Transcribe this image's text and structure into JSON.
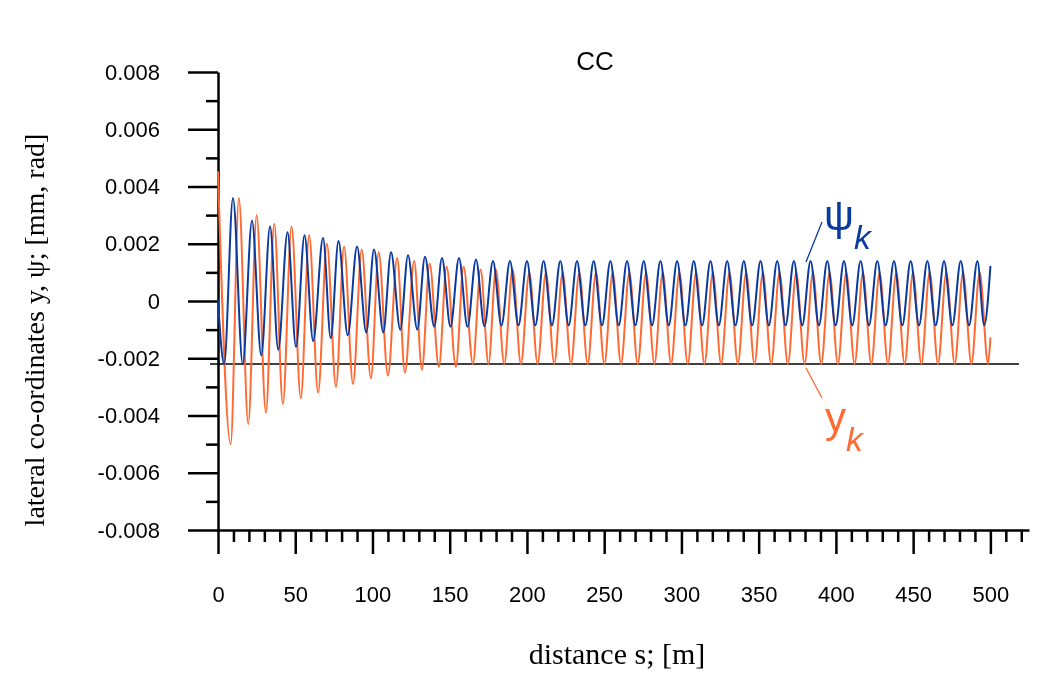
{
  "chart_data": {
    "type": "line",
    "title": "CC",
    "xlabel": "distance s; [m]",
    "ylabel": "lateral co-ordinates y, ψ; [mm, rad]",
    "xlim": [
      0,
      525
    ],
    "xticks": [
      0,
      {
        "value": 10,
        "label": null
      },
      {
        "value": 20,
        "label": null
      },
      {
        "value": 30,
        "label": null
      },
      {
        "value": 40,
        "label": null
      },
      50,
      {
        "value": 60,
        "label": null
      },
      {
        "value": 70,
        "label": null
      },
      {
        "value": 80,
        "label": null
      },
      {
        "value": 90,
        "label": null
      },
      100,
      {
        "value": 110,
        "label": null
      },
      {
        "value": 120,
        "label": null
      },
      {
        "value": 130,
        "label": null
      },
      {
        "value": 140,
        "label": null
      },
      150,
      {
        "value": 160,
        "label": null
      },
      {
        "value": 170,
        "label": null
      },
      {
        "value": 180,
        "label": null
      },
      {
        "value": 190,
        "label": null
      },
      200,
      {
        "value": 210,
        "label": null
      },
      {
        "value": 220,
        "label": null
      },
      {
        "value": 230,
        "label": null
      },
      {
        "value": 240,
        "label": null
      },
      250,
      {
        "value": 260,
        "label": null
      },
      {
        "value": 270,
        "label": null
      },
      {
        "value": 280,
        "label": null
      },
      {
        "value": 290,
        "label": null
      },
      300,
      {
        "value": 310,
        "label": null
      },
      {
        "value": 320,
        "label": null
      },
      {
        "value": 330,
        "label": null
      },
      {
        "value": 340,
        "label": null
      },
      350,
      {
        "value": 360,
        "label": null
      },
      {
        "value": 370,
        "label": null
      },
      {
        "value": 380,
        "label": null
      },
      {
        "value": 390,
        "label": null
      },
      400,
      {
        "value": 410,
        "label": null
      },
      {
        "value": 420,
        "label": null
      },
      {
        "value": 430,
        "label": null
      },
      {
        "value": 440,
        "label": null
      },
      450,
      {
        "value": 460,
        "label": null
      },
      {
        "value": 470,
        "label": null
      },
      {
        "value": 480,
        "label": null
      },
      {
        "value": 490,
        "label": null
      },
      500,
      {
        "value": 510,
        "label": null
      },
      {
        "value": 520,
        "label": null
      }
    ],
    "ylim": [
      -0.008,
      0.008
    ],
    "yticks": [
      -0.008,
      {
        "value": -0.007,
        "label": null
      },
      -0.006,
      {
        "value": -0.005,
        "label": null
      },
      -0.004,
      {
        "value": -0.003,
        "label": null
      },
      -0.002,
      {
        "value": -0.001,
        "label": null
      },
      0,
      {
        "value": 0.001,
        "label": null
      },
      0.002,
      {
        "value": 0.003,
        "label": null
      },
      0.004,
      {
        "value": 0.005,
        "label": null
      },
      0.006,
      {
        "value": 0.007,
        "label": null
      },
      0.008
    ],
    "grid": false,
    "legend": "right",
    "marker": "none",
    "line_style": "solid",
    "ref_lines": [
      {
        "axis": "y",
        "value": -0.0022,
        "color": "#000000"
      }
    ],
    "series": [
      {
        "name": "y$_{k}$",
        "color": "#ff6a33",
        "x": [
          0,
          8.2,
          13.5,
          19.6,
          25,
          31,
          36.4,
          42,
          47.6,
          53.6,
          59,
          64.8,
          70.5,
          76.4,
          81.6,
          87.4,
          93,
          99,
          104,
          110,
          116,
          121,
          127,
          132,
          137,
          143,
          148,
          154,
          159,
          165,
          170,
          175.1,
          179.9,
          185.3,
          190.7,
          196.1,
          201.5,
          206.9,
          212.3,
          217.7,
          223.1,
          228.5,
          233.9,
          239.3,
          244.7,
          250.1,
          255.5,
          260.9,
          266.3,
          271.7,
          277.1,
          282.5,
          287.9,
          293.3,
          298.7,
          304.1,
          309.5,
          314.9,
          320.3,
          325.7,
          331.1,
          336.5,
          341.9,
          347.3,
          352.7,
          358.1,
          363.5,
          368.9,
          374.3,
          379.7,
          385.1,
          390.5,
          395.9,
          401.3,
          406.7,
          412.1,
          417.5,
          422.9,
          428.3,
          433.7,
          439.1,
          444.5,
          449.9,
          455.3,
          460.7,
          466.1,
          471.5,
          476.9,
          482.3,
          487.7,
          493.1,
          498.5,
          500
        ],
        "values": [
          0.0045,
          -0.005,
          0.0036,
          -0.0043,
          0.003,
          -0.0039,
          0.0027,
          -0.0036,
          0.0026,
          -0.0034,
          0.0023,
          -0.0032,
          0.002,
          -0.003,
          0.0019,
          -0.0029,
          0.0018,
          -0.0027,
          0.0017,
          -0.0026,
          0.0015,
          -0.0025,
          0.0014,
          -0.0024,
          0.0013,
          -0.0023,
          0.0012,
          -0.0023,
          0.0012,
          -0.0022,
          0.0011,
          -0.0022,
          0.0011,
          -0.0022,
          0.0011,
          -0.0022,
          0.001,
          -0.0022,
          0.001,
          -0.0022,
          0.001,
          -0.0022,
          0.001,
          -0.0022,
          0.001,
          -0.0022,
          0.001,
          -0.0022,
          0.001,
          -0.0022,
          0.001,
          -0.0022,
          0.001,
          -0.0022,
          0.001,
          -0.0022,
          0.001,
          -0.0022,
          0.001,
          -0.0022,
          0.001,
          -0.0022,
          0.001,
          -0.0022,
          0.001,
          -0.0022,
          0.001,
          -0.0022,
          0.001,
          -0.0022,
          0.001,
          -0.0022,
          0.001,
          -0.0022,
          0.001,
          -0.0022,
          0.001,
          -0.0022,
          0.001,
          -0.0022,
          0.001,
          -0.0022,
          0.001,
          -0.0022,
          0.001,
          -0.0022,
          0.001,
          -0.0022,
          0.001,
          -0.0022,
          0.001,
          -0.0022,
          -0.0013
        ]
      },
      {
        "name": "ψ$_{k}$",
        "color": "#0a3a9e",
        "x": [
          0,
          4,
          9.7,
          16,
          22,
          28,
          33.7,
          39,
          45,
          50.5,
          56,
          61.6,
          68,
          73,
          78,
          84,
          90,
          96,
          101,
          107,
          112,
          118,
          123,
          129,
          134,
          140,
          145,
          150.5,
          156,
          161.5,
          167,
          172.5,
          178,
          183.5,
          189,
          194.5,
          200,
          205.4,
          210.8,
          216.2,
          221.6,
          227,
          232.4,
          237.8,
          243.2,
          248.6,
          254,
          259.4,
          264.8,
          270.2,
          275.6,
          281,
          286.4,
          291.8,
          297.2,
          302.6,
          308,
          313.4,
          318.8,
          324.2,
          329.6,
          335,
          340.4,
          345.8,
          351.2,
          356.6,
          362,
          367.4,
          372.8,
          378.2,
          383.6,
          389,
          394.4,
          399.8,
          405.2,
          410.6,
          416,
          421.4,
          426.8,
          432.2,
          437.6,
          443,
          448.4,
          453.8,
          459.2,
          464.6,
          470,
          475.4,
          480.8,
          486.2,
          491.6,
          496,
          500
        ],
        "values": [
          0,
          -0.0022,
          0.0036,
          -0.0022,
          0.0028,
          -0.0019,
          0.0026,
          -0.0017,
          0.0024,
          -0.0016,
          0.0023,
          -0.0014,
          0.0022,
          -0.0013,
          0.0021,
          -0.0012,
          0.0019,
          -0.0011,
          0.0018,
          -0.0011,
          0.0017,
          -0.001,
          0.0016,
          -0.001,
          0.00155,
          -0.0009,
          0.0015,
          -0.0009,
          0.0015,
          -0.0009,
          0.00145,
          -0.00088,
          0.0014,
          -0.00086,
          0.0014,
          -0.00085,
          0.0014,
          -0.00085,
          0.0014,
          -0.00085,
          0.0014,
          -0.00085,
          0.0014,
          -0.00085,
          0.0014,
          -0.00085,
          0.0014,
          -0.00085,
          0.0014,
          -0.00085,
          0.0014,
          -0.00085,
          0.0014,
          -0.00085,
          0.0014,
          -0.00085,
          0.0014,
          -0.00085,
          0.0014,
          -0.00085,
          0.0014,
          -0.00085,
          0.0014,
          -0.00085,
          0.0014,
          -0.00085,
          0.0014,
          -0.00085,
          0.0014,
          -0.00085,
          0.0014,
          -0.00085,
          0.0014,
          -0.00085,
          0.0014,
          -0.00085,
          0.0014,
          -0.00085,
          0.0014,
          -0.00085,
          0.0014,
          -0.00085,
          0.0014,
          -0.00085,
          0.0014,
          -0.00085,
          0.0014,
          -0.00085,
          0.0014,
          -0.00085,
          0.0014,
          -0.00085,
          0.0012
        ]
      }
    ]
  }
}
